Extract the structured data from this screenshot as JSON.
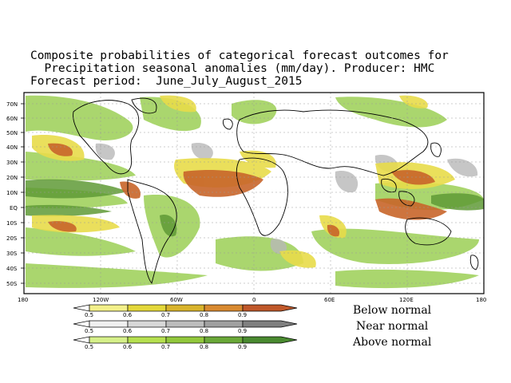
{
  "title": {
    "line1": "Composite probabilities of categorical forecast outcomes for",
    "line2": "  Precipitation seasonal anomalies (mm/day). Producer: HMC",
    "line3": "Forecast period:  June_July_August_2015"
  },
  "map": {
    "lat_labels": [
      "70N",
      "60N",
      "50N",
      "40N",
      "30N",
      "20N",
      "10N",
      "EQ",
      "10S",
      "20S",
      "30S",
      "40S",
      "50S"
    ],
    "lon_labels": [
      "180",
      "120W",
      "60W",
      "0",
      "60E",
      "120E",
      "180"
    ]
  },
  "legend": {
    "bars": [
      {
        "name": "Below normal",
        "ticks": [
          "0.5",
          "0.6",
          "0.7",
          "0.8",
          "0.9"
        ],
        "colors": [
          "#f3f08a",
          "#e4d83a",
          "#d9b42c",
          "#d98a30",
          "#c0582a"
        ]
      },
      {
        "name": "Near normal",
        "ticks": [
          "0.5",
          "0.6",
          "0.7",
          "0.8",
          "0.9"
        ],
        "colors": [
          "#f0f0f0",
          "#d8d8d8",
          "#bdbdbd",
          "#a0a0a0",
          "#808080"
        ]
      },
      {
        "name": "Above normal",
        "ticks": [
          "0.5",
          "0.6",
          "0.7",
          "0.8",
          "0.9"
        ],
        "colors": [
          "#d6f08a",
          "#b6e050",
          "#92c83c",
          "#6aa838",
          "#4a8a30"
        ]
      }
    ]
  },
  "colors": {
    "below": "#c9611f",
    "near": "#b0b0b0",
    "above": "#7ab83e"
  }
}
